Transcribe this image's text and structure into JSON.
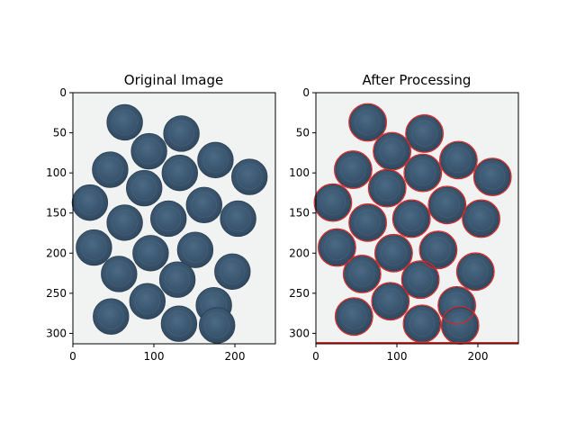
{
  "chart_data": [
    {
      "type": "image",
      "title": "Original Image",
      "xlim": [
        0,
        250
      ],
      "ylim": [
        313,
        0
      ],
      "x_ticks": [
        0,
        100,
        200
      ],
      "y_ticks": [
        0,
        50,
        100,
        150,
        200,
        250,
        300
      ],
      "background_color": "#f1f3f2",
      "coin_color": "#3b5670",
      "coins": [
        {
          "x": 64,
          "y": 37,
          "r": 22
        },
        {
          "x": 134,
          "y": 51,
          "r": 22
        },
        {
          "x": 94,
          "y": 73,
          "r": 22
        },
        {
          "x": 176,
          "y": 84,
          "r": 22
        },
        {
          "x": 46,
          "y": 96,
          "r": 22
        },
        {
          "x": 132,
          "y": 100,
          "r": 22
        },
        {
          "x": 218,
          "y": 105,
          "r": 22
        },
        {
          "x": 88,
          "y": 119,
          "r": 22
        },
        {
          "x": 21,
          "y": 137,
          "r": 22
        },
        {
          "x": 162,
          "y": 140,
          "r": 22
        },
        {
          "x": 118,
          "y": 157,
          "r": 22
        },
        {
          "x": 204,
          "y": 157,
          "r": 22
        },
        {
          "x": 64,
          "y": 162,
          "r": 22
        },
        {
          "x": 26,
          "y": 193,
          "r": 22
        },
        {
          "x": 151,
          "y": 196,
          "r": 22
        },
        {
          "x": 96,
          "y": 200,
          "r": 22
        },
        {
          "x": 197,
          "y": 223,
          "r": 22
        },
        {
          "x": 57,
          "y": 226,
          "r": 22
        },
        {
          "x": 129,
          "y": 233,
          "r": 22
        },
        {
          "x": 174,
          "y": 265,
          "r": 22
        },
        {
          "x": 92,
          "y": 260,
          "r": 22
        },
        {
          "x": 47,
          "y": 279,
          "r": 22
        },
        {
          "x": 131,
          "y": 288,
          "r": 22
        },
        {
          "x": 178,
          "y": 290,
          "r": 22
        }
      ]
    },
    {
      "type": "image",
      "title": "After Processing",
      "xlim": [
        0,
        250
      ],
      "ylim": [
        313,
        0
      ],
      "x_ticks": [
        0,
        100,
        200
      ],
      "y_ticks": [
        0,
        50,
        100,
        150,
        200,
        250,
        300
      ],
      "background_color": "#f1f3f2",
      "coin_color": "#3b5670",
      "outline_color": "#d62728",
      "bottom_line_color": "#d62728",
      "coins": [
        {
          "x": 64,
          "y": 37,
          "r": 22
        },
        {
          "x": 134,
          "y": 51,
          "r": 22
        },
        {
          "x": 94,
          "y": 73,
          "r": 22
        },
        {
          "x": 176,
          "y": 84,
          "r": 22
        },
        {
          "x": 46,
          "y": 96,
          "r": 22
        },
        {
          "x": 132,
          "y": 100,
          "r": 22
        },
        {
          "x": 218,
          "y": 105,
          "r": 22
        },
        {
          "x": 88,
          "y": 119,
          "r": 22
        },
        {
          "x": 21,
          "y": 137,
          "r": 22
        },
        {
          "x": 162,
          "y": 140,
          "r": 22
        },
        {
          "x": 118,
          "y": 157,
          "r": 22
        },
        {
          "x": 204,
          "y": 157,
          "r": 22
        },
        {
          "x": 64,
          "y": 162,
          "r": 22
        },
        {
          "x": 26,
          "y": 193,
          "r": 22
        },
        {
          "x": 151,
          "y": 196,
          "r": 22
        },
        {
          "x": 96,
          "y": 200,
          "r": 22
        },
        {
          "x": 197,
          "y": 223,
          "r": 22
        },
        {
          "x": 57,
          "y": 226,
          "r": 22
        },
        {
          "x": 129,
          "y": 233,
          "r": 22
        },
        {
          "x": 174,
          "y": 265,
          "r": 22
        },
        {
          "x": 92,
          "y": 260,
          "r": 22
        },
        {
          "x": 47,
          "y": 279,
          "r": 22
        },
        {
          "x": 131,
          "y": 288,
          "r": 22
        },
        {
          "x": 178,
          "y": 290,
          "r": 22
        }
      ]
    }
  ]
}
